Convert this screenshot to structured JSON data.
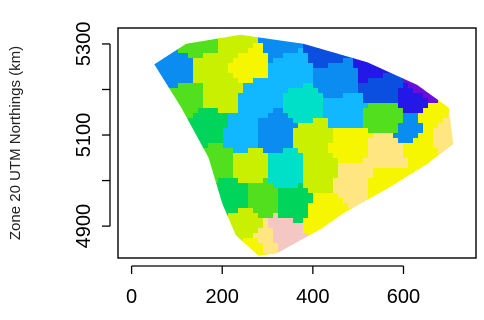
{
  "chart_data": {
    "type": "heatmap",
    "title": "",
    "xlabel": "",
    "ylabel": "Zone 20 UTM Northings (km)",
    "xlim": [
      -30,
      760
    ],
    "ylim": [
      4830,
      5335
    ],
    "x_ticks": [
      0,
      200,
      400,
      600
    ],
    "y_ticks": [
      4900,
      5100,
      5300
    ],
    "x_tick_labels": [
      "0",
      "200",
      "400",
      "600"
    ],
    "y_tick_labels": [
      "4900",
      "5100",
      "5300"
    ],
    "legend": "none",
    "grid": false,
    "colormap": [
      "#f5c7c2",
      "#ffe680",
      "#f6f600",
      "#c9f000",
      "#52e01e",
      "#00d45a",
      "#00e0c8",
      "#12b8ff",
      "#0a8cf0",
      "#0a4fe0",
      "#2318e8",
      "#6b0fd6"
    ],
    "region_outline": [
      [
        50,
        5255
      ],
      [
        120,
        5300
      ],
      [
        240,
        5320
      ],
      [
        380,
        5300
      ],
      [
        520,
        5260
      ],
      [
        630,
        5210
      ],
      [
        700,
        5160
      ],
      [
        710,
        5080
      ],
      [
        650,
        5035
      ],
      [
        560,
        4980
      ],
      [
        470,
        4930
      ],
      [
        420,
        4895
      ],
      [
        320,
        4840
      ],
      [
        280,
        4835
      ],
      [
        230,
        4880
      ],
      [
        200,
        4950
      ],
      [
        170,
        5050
      ],
      [
        110,
        5160
      ]
    ],
    "field_points": [
      [
        150,
        5300,
        4
      ],
      [
        230,
        5300,
        3
      ],
      [
        330,
        5300,
        8
      ],
      [
        430,
        5290,
        9
      ],
      [
        540,
        5260,
        10
      ],
      [
        640,
        5210,
        11
      ],
      [
        620,
        5180,
        10
      ],
      [
        100,
        5240,
        8
      ],
      [
        170,
        5250,
        3
      ],
      [
        260,
        5260,
        2
      ],
      [
        350,
        5250,
        7
      ],
      [
        450,
        5220,
        8
      ],
      [
        560,
        5200,
        9
      ],
      [
        120,
        5180,
        4
      ],
      [
        200,
        5190,
        3
      ],
      [
        280,
        5180,
        7
      ],
      [
        380,
        5160,
        6
      ],
      [
        470,
        5150,
        7
      ],
      [
        560,
        5140,
        4
      ],
      [
        660,
        5130,
        2
      ],
      [
        690,
        5100,
        1
      ],
      [
        170,
        5120,
        5
      ],
      [
        240,
        5100,
        7
      ],
      [
        320,
        5110,
        8
      ],
      [
        400,
        5100,
        3
      ],
      [
        480,
        5080,
        2
      ],
      [
        560,
        5060,
        1
      ],
      [
        640,
        5080,
        2
      ],
      [
        620,
        5110,
        8
      ],
      [
        190,
        5040,
        4
      ],
      [
        260,
        5030,
        3
      ],
      [
        340,
        5020,
        6
      ],
      [
        410,
        5020,
        3
      ],
      [
        490,
        5000,
        1
      ],
      [
        560,
        4990,
        2
      ],
      [
        220,
        4970,
        5
      ],
      [
        290,
        4960,
        4
      ],
      [
        360,
        4950,
        5
      ],
      [
        420,
        4930,
        2
      ],
      [
        250,
        4900,
        3
      ],
      [
        300,
        4870,
        1
      ],
      [
        330,
        4880,
        0
      ],
      [
        270,
        4850,
        2
      ]
    ]
  }
}
